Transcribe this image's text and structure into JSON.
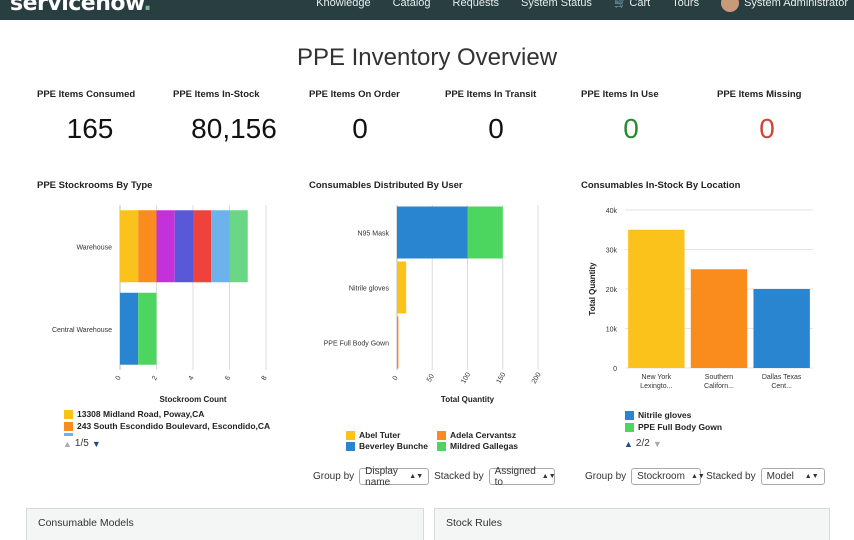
{
  "nav": {
    "logo_text": "servicenow",
    "logo_dot": ".",
    "links": [
      "Knowledge",
      "Catalog",
      "Requests",
      "System Status"
    ],
    "cart": "Cart",
    "tours": "Tours",
    "user": "System Administrator"
  },
  "page": {
    "title": "PPE Inventory Overview"
  },
  "kpis": [
    {
      "label": "PPE Items Consumed",
      "value": "165",
      "color": "default"
    },
    {
      "label": "PPE Items In-Stock",
      "value": "80,156",
      "color": "default"
    },
    {
      "label": "PPE Items On Order",
      "value": "0",
      "color": "default"
    },
    {
      "label": "PPE Items In Transit",
      "value": "0",
      "color": "default"
    },
    {
      "label": "PPE Items In Use",
      "value": "0",
      "color": "green"
    },
    {
      "label": "PPE Items Missing",
      "value": "0",
      "color": "red"
    }
  ],
  "colors": {
    "yellow": "#fbc21b",
    "orange": "#fa8b1d",
    "magenta": "#c332d9",
    "indigo": "#5858d8",
    "red": "#f0423c",
    "lightblue": "#6cb2ed",
    "lightgreen": "#69d785",
    "blue": "#2a85d1",
    "green": "#4cd660",
    "kpi_green": "#278a2d",
    "kpi_red": "#d0453a",
    "topbar": "#293e40"
  },
  "chart_data": [
    {
      "type": "bar",
      "orientation": "horizontal",
      "stacked": true,
      "title": "PPE Stockrooms By Type",
      "xlabel": "Stockroom Count",
      "ylabel": "",
      "categories": [
        "Warehouse",
        "Central Warehouse"
      ],
      "x_ticks": [
        "0",
        "2",
        "4",
        "6",
        "8"
      ],
      "xlim": [
        0,
        8
      ],
      "series": [
        {
          "name": "13308 Midland Road, Poway,CA",
          "color": "#fbc21b",
          "values": [
            1,
            0
          ]
        },
        {
          "name": "243 South Escondido Boulevard, Escondido,CA",
          "color": "#fa8b1d",
          "values": [
            1,
            0
          ]
        },
        {
          "name": "",
          "color": "#c332d9",
          "values": [
            1,
            0
          ]
        },
        {
          "name": "",
          "color": "#5858d8",
          "values": [
            1,
            0
          ]
        },
        {
          "name": "",
          "color": "#f0423c",
          "values": [
            1,
            0
          ]
        },
        {
          "name": "",
          "color": "#6cb2ed",
          "values": [
            1,
            0
          ]
        },
        {
          "name": "",
          "color": "#69d785",
          "values": [
            1,
            0
          ]
        },
        {
          "name": "",
          "color": "#2a85d1",
          "values": [
            0,
            1
          ]
        },
        {
          "name": "",
          "color": "#4cd660",
          "values": [
            0,
            1
          ]
        }
      ],
      "legend": {
        "visible_entries": [
          "13308 Midland Road, Poway,CA",
          "243 South Escondido Boulevard, Escondido,CA"
        ],
        "page": "1/5"
      }
    },
    {
      "type": "bar",
      "orientation": "horizontal",
      "stacked": true,
      "title": "Consumables Distributed By User",
      "xlabel": "Total Quantity",
      "ylabel": "",
      "categories": [
        "N95 Mask",
        "Nitrile gloves",
        "PPE Full Body Gown"
      ],
      "x_ticks": [
        "0",
        "50",
        "100",
        "150",
        "200"
      ],
      "xlim": [
        0,
        200
      ],
      "series": [
        {
          "name": "Abel Tuter",
          "color": "#fbc21b",
          "values": [
            0,
            13,
            0
          ]
        },
        {
          "name": "Beverley Bunche",
          "color": "#2a85d1",
          "values": [
            100,
            0,
            0
          ]
        },
        {
          "name": "Adela Cervantsz",
          "color": "#fa8b1d",
          "values": [
            0,
            0,
            2
          ]
        },
        {
          "name": "Mildred Gallegas",
          "color": "#4cd660",
          "values": [
            50,
            0,
            0
          ]
        }
      ]
    },
    {
      "type": "bar",
      "orientation": "vertical",
      "title": "Consumables In-Stock By Location",
      "xlabel": "",
      "ylabel": "Total Quantity",
      "categories": [
        "New York Lexingto...",
        "Southern Californ...",
        "Dallas Texas Cent..."
      ],
      "y_ticks": [
        "0",
        "10k",
        "20k",
        "30k",
        "40k"
      ],
      "ylim": [
        0,
        40000
      ],
      "series": [
        {
          "name": "Nitrile gloves",
          "color": "#2a85d1",
          "values": [
            0,
            0,
            20000
          ]
        },
        {
          "name": "PPE Full Body Gown",
          "color": "#4cd660",
          "values": [
            0,
            0,
            0
          ]
        },
        {
          "name": "",
          "color": "#fbc21b",
          "values": [
            35000,
            0,
            0
          ]
        },
        {
          "name": "",
          "color": "#fa8b1d",
          "values": [
            0,
            25000,
            0
          ]
        }
      ],
      "legend": {
        "visible_entries": [
          "Nitrile gloves",
          "PPE Full Body Gown"
        ],
        "page": "2/2"
      }
    }
  ],
  "controls": {
    "group_by_label": "Group by",
    "stacked_by_label": "Stacked by",
    "user_chart": {
      "group_value": "Display name",
      "stacked_value": "Assigned to"
    },
    "location_chart": {
      "group_value": "Stockroom",
      "stacked_value": "Model"
    }
  },
  "panels": {
    "left": "Consumable Models",
    "right": "Stock Rules"
  }
}
